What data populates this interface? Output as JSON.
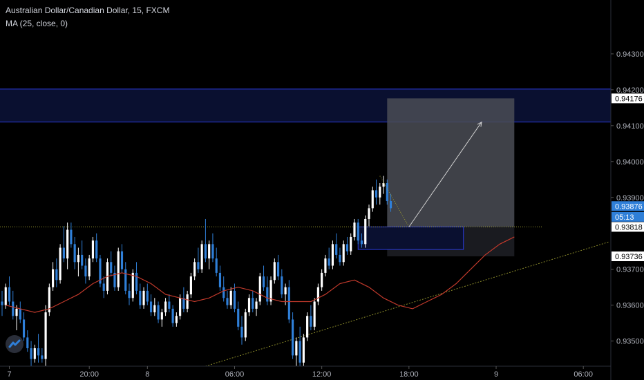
{
  "header": {
    "title": "Australian Dollar/Canadian Dollar, 15, FXCM",
    "indicator": "MA (25, close, 0)"
  },
  "colors": {
    "background": "#000000",
    "bull": "#ffffff",
    "bear": "#2f7fd8",
    "ma": "#c0392b",
    "zone_fill": "#0a1030",
    "zone_line": "#2a3ad8",
    "projection_fill": "#4a4c55",
    "stop_fill": "#1a1b20",
    "trendline": "#8a8a2a",
    "axis_text": "#b2b5be",
    "price_badge": "#2f7fd8",
    "label_badge": "#ffffff"
  },
  "icons": {
    "logo": "tradingview-logo-icon"
  },
  "chart_data": {
    "type": "candlestick",
    "title": "Australian Dollar/Canadian Dollar, 15, FXCM",
    "ylim": [
      0.9343,
      0.9445
    ],
    "y_ticks": [
      "0.94300",
      "0.94200",
      "0.94100",
      "0.94000",
      "0.93900",
      "0.93700",
      "0.93600",
      "0.93500"
    ],
    "x_ticks": [
      {
        "label": "7",
        "i": 2
      },
      {
        "label": "20:00",
        "i": 24
      },
      {
        "label": "8",
        "i": 40
      },
      {
        "label": "06:00",
        "i": 64
      },
      {
        "label": "12:00",
        "i": 88
      },
      {
        "label": "18:00",
        "i": 112
      },
      {
        "label": "9",
        "i": 136
      },
      {
        "label": "06:00",
        "i": 160
      }
    ],
    "x_range": [
      0,
      167
    ],
    "price_labels": [
      {
        "text": "0.94176",
        "value": 0.94176,
        "style": "label"
      },
      {
        "text": "0.93876",
        "value": 0.93876,
        "style": "current"
      },
      {
        "text": "05:13",
        "value": 0.93846,
        "style": "current"
      },
      {
        "text": "0.93818",
        "value": 0.93818,
        "style": "label"
      },
      {
        "text": "0.93736",
        "value": 0.93736,
        "style": "label"
      }
    ],
    "current_price": 0.93876,
    "countdown": "05:13",
    "zones": [
      {
        "from": 0.9411,
        "to": 0.94202,
        "x_start": 0,
        "x_end": 167,
        "kind": "supply"
      }
    ],
    "projection": {
      "target": 0.94176,
      "entry": 0.93818,
      "stop": 0.93736,
      "x_start": 106,
      "x_end": 141,
      "arrow": [
        [
          112,
          0.93818
        ],
        [
          132,
          0.9411
        ]
      ]
    },
    "entry_box": {
      "from": 0.93755,
      "to": 0.93818,
      "x_start": 98,
      "x_end": 127
    },
    "horizontal_line": {
      "value": 0.93818,
      "style": "dotted"
    },
    "trendline": [
      [
        56,
        0.9343
      ],
      [
        167,
        0.93776
      ]
    ],
    "wick_path": [
      [
        104,
        0.9396
      ],
      [
        112,
        0.93818
      ]
    ],
    "candles": [
      [
        0.9361,
        0.9364,
        0.9357,
        0.936
      ],
      [
        0.936,
        0.9366,
        0.9359,
        0.9365
      ],
      [
        0.9365,
        0.9368,
        0.936,
        0.9361
      ],
      [
        0.9361,
        0.9364,
        0.9356,
        0.9357
      ],
      [
        0.9357,
        0.936,
        0.9353,
        0.9359
      ],
      [
        0.9359,
        0.9361,
        0.9355,
        0.9356
      ],
      [
        0.9356,
        0.9358,
        0.935,
        0.9351
      ],
      [
        0.9351,
        0.9353,
        0.9347,
        0.9348
      ],
      [
        0.9348,
        0.935,
        0.9343,
        0.9345
      ],
      [
        0.9345,
        0.9349,
        0.9344,
        0.9348
      ],
      [
        0.9348,
        0.9352,
        0.9344,
        0.9346
      ],
      [
        0.9346,
        0.9348,
        0.9344,
        0.9345
      ],
      [
        0.9345,
        0.936,
        0.9343,
        0.9358
      ],
      [
        0.9358,
        0.9366,
        0.9357,
        0.9365
      ],
      [
        0.9365,
        0.9372,
        0.9364,
        0.937
      ],
      [
        0.937,
        0.9373,
        0.9365,
        0.9367
      ],
      [
        0.9367,
        0.9377,
        0.9366,
        0.9376
      ],
      [
        0.9376,
        0.9382,
        0.9372,
        0.9373
      ],
      [
        0.9373,
        0.9383,
        0.937,
        0.9381
      ],
      [
        0.9381,
        0.9383,
        0.9376,
        0.9377
      ],
      [
        0.9377,
        0.9379,
        0.937,
        0.9372
      ],
      [
        0.9372,
        0.9376,
        0.9368,
        0.9374
      ],
      [
        0.9374,
        0.9378,
        0.937,
        0.9371
      ],
      [
        0.9371,
        0.9373,
        0.9366,
        0.9368
      ],
      [
        0.9368,
        0.9374,
        0.9367,
        0.9373
      ],
      [
        0.9373,
        0.9379,
        0.9372,
        0.9378
      ],
      [
        0.9378,
        0.938,
        0.9372,
        0.9373
      ],
      [
        0.9373,
        0.9374,
        0.9365,
        0.9366
      ],
      [
        0.9366,
        0.9368,
        0.9362,
        0.9364
      ],
      [
        0.9364,
        0.9373,
        0.9363,
        0.9372
      ],
      [
        0.9372,
        0.9375,
        0.9368,
        0.9369
      ],
      [
        0.9369,
        0.9371,
        0.9364,
        0.9365
      ],
      [
        0.9365,
        0.9376,
        0.9364,
        0.9375
      ],
      [
        0.9375,
        0.9377,
        0.9369,
        0.937
      ],
      [
        0.937,
        0.9372,
        0.9363,
        0.9364
      ],
      [
        0.9364,
        0.9366,
        0.936,
        0.9362
      ],
      [
        0.9362,
        0.937,
        0.9361,
        0.9369
      ],
      [
        0.9369,
        0.9372,
        0.9363,
        0.9364
      ],
      [
        0.9364,
        0.9366,
        0.9359,
        0.936
      ],
      [
        0.936,
        0.9365,
        0.9359,
        0.9364
      ],
      [
        0.9364,
        0.9366,
        0.936,
        0.9361
      ],
      [
        0.9361,
        0.9363,
        0.9357,
        0.9358
      ],
      [
        0.9358,
        0.9362,
        0.9357,
        0.936
      ],
      [
        0.936,
        0.9361,
        0.9355,
        0.9356
      ],
      [
        0.9356,
        0.9359,
        0.9354,
        0.9358
      ],
      [
        0.9358,
        0.9362,
        0.9357,
        0.9361
      ],
      [
        0.9361,
        0.9363,
        0.9358,
        0.9359
      ],
      [
        0.9359,
        0.936,
        0.9354,
        0.9355
      ],
      [
        0.9355,
        0.9358,
        0.9354,
        0.9357
      ],
      [
        0.9357,
        0.9363,
        0.9356,
        0.9362
      ],
      [
        0.9362,
        0.9365,
        0.9358,
        0.9359
      ],
      [
        0.9359,
        0.9364,
        0.9358,
        0.9363
      ],
      [
        0.9363,
        0.9369,
        0.9362,
        0.9368
      ],
      [
        0.9368,
        0.9373,
        0.9367,
        0.9372
      ],
      [
        0.9372,
        0.9376,
        0.9369,
        0.937
      ],
      [
        0.937,
        0.9378,
        0.9369,
        0.9377
      ],
      [
        0.9377,
        0.9384,
        0.9372,
        0.9373
      ],
      [
        0.9373,
        0.9378,
        0.937,
        0.9377
      ],
      [
        0.9377,
        0.938,
        0.9372,
        0.9373
      ],
      [
        0.9373,
        0.9376,
        0.9368,
        0.9369
      ],
      [
        0.9369,
        0.9371,
        0.9364,
        0.9365
      ],
      [
        0.9365,
        0.9368,
        0.9361,
        0.9362
      ],
      [
        0.9362,
        0.9364,
        0.9359,
        0.936
      ],
      [
        0.936,
        0.9365,
        0.9359,
        0.9364
      ],
      [
        0.9364,
        0.9366,
        0.9358,
        0.9359
      ],
      [
        0.9359,
        0.9361,
        0.9353,
        0.9354
      ],
      [
        0.9354,
        0.9357,
        0.9349,
        0.9351
      ],
      [
        0.9351,
        0.9359,
        0.935,
        0.9358
      ],
      [
        0.9358,
        0.9363,
        0.9357,
        0.9362
      ],
      [
        0.9362,
        0.9364,
        0.9358,
        0.9359
      ],
      [
        0.9359,
        0.9362,
        0.9357,
        0.9361
      ],
      [
        0.9361,
        0.9369,
        0.936,
        0.9368
      ],
      [
        0.9368,
        0.9371,
        0.9364,
        0.9365
      ],
      [
        0.9365,
        0.9368,
        0.936,
        0.9361
      ],
      [
        0.9361,
        0.9368,
        0.936,
        0.9367
      ],
      [
        0.9367,
        0.9373,
        0.9366,
        0.9372
      ],
      [
        0.9372,
        0.9374,
        0.9367,
        0.9368
      ],
      [
        0.9368,
        0.937,
        0.9362,
        0.9363
      ],
      [
        0.9363,
        0.9366,
        0.936,
        0.9365
      ],
      [
        0.9365,
        0.9367,
        0.9355,
        0.9356
      ],
      [
        0.9356,
        0.9358,
        0.9345,
        0.9346
      ],
      [
        0.9346,
        0.9351,
        0.9343,
        0.935
      ],
      [
        0.935,
        0.9354,
        0.9343,
        0.9344
      ],
      [
        0.9344,
        0.9352,
        0.9343,
        0.9351
      ],
      [
        0.9351,
        0.9358,
        0.935,
        0.9357
      ],
      [
        0.9357,
        0.936,
        0.9353,
        0.9354
      ],
      [
        0.9354,
        0.9362,
        0.9353,
        0.9361
      ],
      [
        0.9361,
        0.9366,
        0.936,
        0.9365
      ],
      [
        0.9365,
        0.937,
        0.9364,
        0.9369
      ],
      [
        0.9369,
        0.9374,
        0.9368,
        0.9373
      ],
      [
        0.9373,
        0.9376,
        0.937,
        0.9371
      ],
      [
        0.9371,
        0.9378,
        0.937,
        0.9377
      ],
      [
        0.9377,
        0.938,
        0.9373,
        0.9374
      ],
      [
        0.9374,
        0.9376,
        0.9371,
        0.9372
      ],
      [
        0.9372,
        0.9378,
        0.9371,
        0.9377
      ],
      [
        0.9377,
        0.9379,
        0.9374,
        0.9375
      ],
      [
        0.9375,
        0.938,
        0.9374,
        0.9379
      ],
      [
        0.9379,
        0.9384,
        0.9378,
        0.9383
      ],
      [
        0.9383,
        0.9384,
        0.9377,
        0.9378
      ],
      [
        0.9378,
        0.938,
        0.9376,
        0.9377
      ],
      [
        0.9377,
        0.9385,
        0.9376,
        0.9384
      ],
      [
        0.9384,
        0.9388,
        0.9382,
        0.9387
      ],
      [
        0.9387,
        0.9393,
        0.9386,
        0.9392
      ],
      [
        0.9392,
        0.9395,
        0.9388,
        0.939
      ],
      [
        0.939,
        0.9394,
        0.9388,
        0.9393
      ],
      [
        0.9393,
        0.9396,
        0.9391,
        0.9394
      ],
      [
        0.9394,
        0.9395,
        0.9388,
        0.9389
      ],
      [
        0.9389,
        0.9391,
        0.9386,
        0.9387
      ]
    ],
    "ma": [
      [
        1,
        0.936
      ],
      [
        5,
        0.9359
      ],
      [
        9,
        0.9358
      ],
      [
        13,
        0.9359
      ],
      [
        17,
        0.9361
      ],
      [
        21,
        0.9363
      ],
      [
        25,
        0.9366
      ],
      [
        29,
        0.9368
      ],
      [
        33,
        0.9369
      ],
      [
        37,
        0.9368
      ],
      [
        41,
        0.9366
      ],
      [
        45,
        0.9363
      ],
      [
        49,
        0.9362
      ],
      [
        53,
        0.9361
      ],
      [
        57,
        0.9362
      ],
      [
        61,
        0.9364
      ],
      [
        65,
        0.9365
      ],
      [
        69,
        0.9364
      ],
      [
        73,
        0.9362
      ],
      [
        77,
        0.9361
      ],
      [
        81,
        0.9361
      ],
      [
        85,
        0.9361
      ],
      [
        89,
        0.9363
      ],
      [
        93,
        0.9366
      ],
      [
        97,
        0.9367
      ],
      [
        101,
        0.9365
      ],
      [
        105,
        0.9362
      ],
      [
        109,
        0.936
      ],
      [
        113,
        0.9359
      ],
      [
        117,
        0.9361
      ],
      [
        121,
        0.9363
      ],
      [
        125,
        0.9366
      ],
      [
        129,
        0.937
      ],
      [
        133,
        0.9374
      ],
      [
        137,
        0.9377
      ],
      [
        141,
        0.9379
      ]
    ]
  }
}
